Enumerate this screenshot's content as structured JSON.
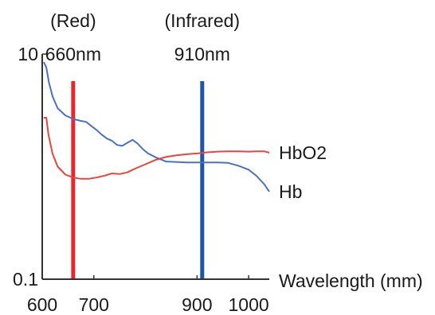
{
  "chart_data": {
    "type": "line",
    "title": "",
    "xlabel": "Wavelength (mm)",
    "ylabel": "",
    "xlim": [
      600,
      1040
    ],
    "ylim": [
      0.1,
      10
    ],
    "y_scale": "log",
    "grid": false,
    "x_ticks": [
      {
        "value": 600,
        "label": "600"
      },
      {
        "value": 700,
        "label": "700"
      },
      {
        "value": 900,
        "label": "900"
      },
      {
        "value": 1000,
        "label": "1000"
      }
    ],
    "y_ticks": [
      {
        "value": 10,
        "label": "10"
      },
      {
        "value": 0.1,
        "label": "0.1"
      }
    ],
    "markers": [
      {
        "x": 660,
        "name": "(Red)",
        "label": "660nm",
        "color": "#e8262b"
      },
      {
        "x": 910,
        "name": "(Infrared)",
        "label": "910nm",
        "color": "#1f55a8"
      }
    ],
    "series": [
      {
        "name": "Hb",
        "color": "#4a72c4",
        "x": [
          603,
          608,
          613,
          620,
          630,
          645,
          660,
          675,
          685,
          695,
          705,
          715,
          725,
          735,
          745,
          755,
          765,
          775,
          785,
          795,
          805,
          820,
          840,
          860,
          880,
          900,
          920,
          940,
          960,
          980,
          1000,
          1015,
          1030,
          1040
        ],
        "y": [
          8.5,
          7.6,
          5.6,
          4.2,
          3.3,
          2.85,
          2.65,
          2.55,
          2.5,
          2.3,
          2.12,
          1.93,
          1.78,
          1.7,
          1.56,
          1.53,
          1.63,
          1.73,
          1.6,
          1.43,
          1.31,
          1.21,
          1.11,
          1.1,
          1.09,
          1.09,
          1.09,
          1.09,
          1.08,
          1.02,
          0.94,
          0.83,
          0.7,
          0.6
        ]
      },
      {
        "name": "HbO2",
        "color": "#e8453c",
        "x": [
          603,
          608,
          612,
          620,
          630,
          645,
          660,
          675,
          690,
          705,
          720,
          735,
          750,
          765,
          780,
          800,
          820,
          840,
          860,
          880,
          900,
          920,
          940,
          960,
          980,
          1000,
          1015,
          1030,
          1040
        ],
        "y": [
          2.72,
          2.72,
          1.93,
          1.3,
          1.0,
          0.85,
          0.8,
          0.78,
          0.78,
          0.8,
          0.83,
          0.87,
          0.86,
          0.89,
          0.96,
          1.05,
          1.15,
          1.22,
          1.26,
          1.29,
          1.31,
          1.34,
          1.36,
          1.37,
          1.37,
          1.36,
          1.37,
          1.37,
          1.33
        ]
      }
    ]
  }
}
